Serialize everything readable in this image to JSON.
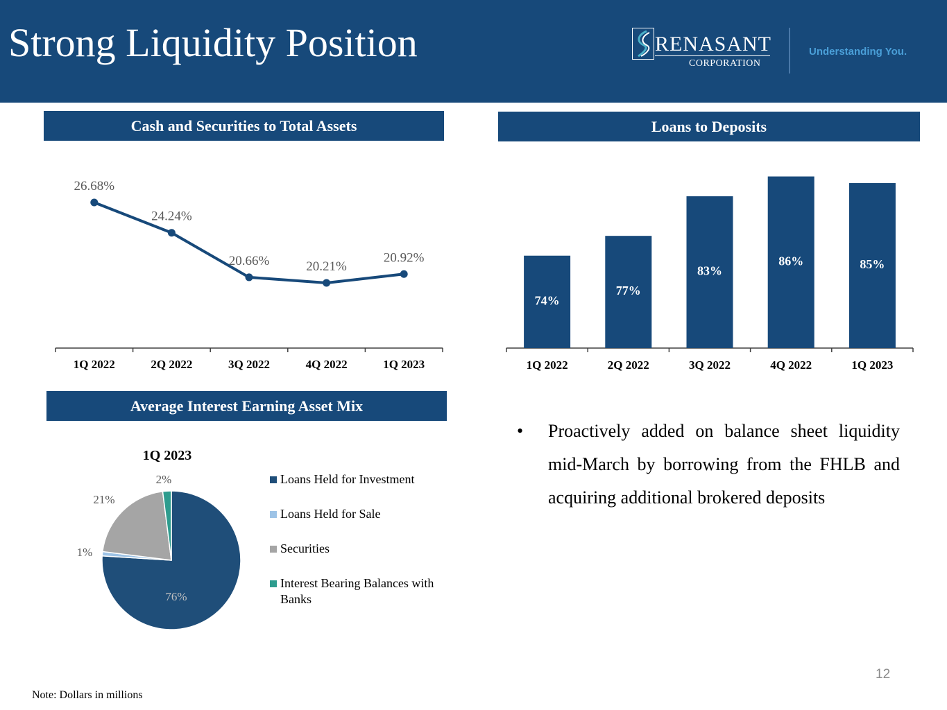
{
  "header": {
    "title": "Strong Liquidity Position",
    "logo_name": "RENASANT",
    "logo_sub": "CORPORATION",
    "tagline": "Understanding You."
  },
  "colors": {
    "brand": "#17497a",
    "accent": "#4a9fd8"
  },
  "sections": {
    "cash_securities": "Cash and Securities to Total Assets",
    "loans_deposits": "Loans to Deposits",
    "asset_mix": "Average Interest Earning Asset Mix"
  },
  "chart_data": [
    {
      "id": "cash_securities",
      "type": "line",
      "title": "Cash and Securities to Total Assets",
      "categories": [
        "1Q 2022",
        "2Q 2022",
        "3Q 2022",
        "4Q 2022",
        "1Q 2023"
      ],
      "values": [
        26.68,
        24.24,
        20.66,
        20.21,
        20.92
      ],
      "labels": [
        "26.68%",
        "24.24%",
        "20.66%",
        "20.21%",
        "20.92%"
      ],
      "ylim": [
        15,
        28
      ],
      "color": "#17497a"
    },
    {
      "id": "loans_deposits",
      "type": "bar",
      "title": "Loans to Deposits",
      "categories": [
        "1Q 2022",
        "2Q 2022",
        "3Q 2022",
        "4Q 2022",
        "1Q 2023"
      ],
      "values": [
        74,
        77,
        83,
        86,
        85
      ],
      "labels": [
        "74%",
        "77%",
        "83%",
        "86%",
        "85%"
      ],
      "ylim": [
        60,
        87
      ],
      "color": "#17497a"
    },
    {
      "id": "asset_mix",
      "type": "pie",
      "title": "1Q 2023",
      "slices": [
        {
          "name": "Loans Held for Investment",
          "value": 76,
          "label": "76%",
          "color": "#1f4e79"
        },
        {
          "name": "Loans Held for Sale",
          "value": 1,
          "label": "1%",
          "color": "#9dc3e6"
        },
        {
          "name": "Securities",
          "value": 21,
          "label": "21%",
          "color": "#a5a5a5"
        },
        {
          "name": "Interest Bearing Balances with Banks",
          "value": 2,
          "label": "2%",
          "color": "#2e9c8e"
        }
      ]
    }
  ],
  "bullet": "Proactively added on balance sheet liquidity mid-March by borrowing from the FHLB and acquiring additional brokered deposits",
  "bullet_symbol": "•",
  "page_number": "12",
  "note": "Note:  Dollars in millions"
}
